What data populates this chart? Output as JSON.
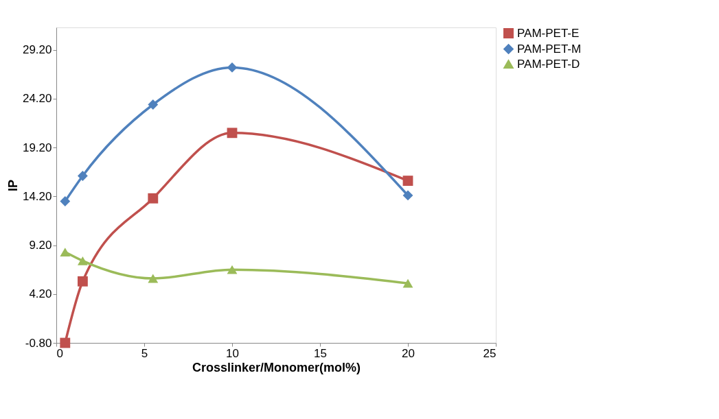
{
  "chart_data": {
    "type": "line",
    "xlabel": "Crosslinker/Monomer(mol%)",
    "ylabel": "IP",
    "x": [
      0.5,
      1.5,
      5.5,
      10,
      20
    ],
    "series": [
      {
        "name": "PAM-PET-E",
        "color": "#c0504d",
        "marker": "square",
        "values": [
          -0.8,
          5.5,
          14.0,
          20.7,
          15.8
        ]
      },
      {
        "name": "PAM-PET-M",
        "color": "#4f81bd",
        "marker": "diamond",
        "values": [
          13.7,
          16.3,
          23.6,
          27.4,
          14.3
        ]
      },
      {
        "name": "PAM-PET-D",
        "color": "#9bbb59",
        "marker": "triangle",
        "values": [
          8.5,
          7.6,
          5.8,
          6.7,
          5.3
        ]
      }
    ],
    "xlim": [
      0,
      25
    ],
    "xticks": [
      0,
      5,
      10,
      15,
      20,
      25
    ],
    "ylim": [
      -0.8,
      31.5
    ],
    "yticks": [
      {
        "value": -0.8,
        "label": "-0.80"
      },
      {
        "value": 4.2,
        "label": "4.20"
      },
      {
        "value": 9.2,
        "label": "9.20"
      },
      {
        "value": 14.2,
        "label": "14.20"
      },
      {
        "value": 19.2,
        "label": "19.20"
      },
      {
        "value": 24.2,
        "label": "24.20"
      },
      {
        "value": 29.2,
        "label": "29.20"
      }
    ],
    "grid": false,
    "legend": "top right",
    "line_style": "solid"
  }
}
